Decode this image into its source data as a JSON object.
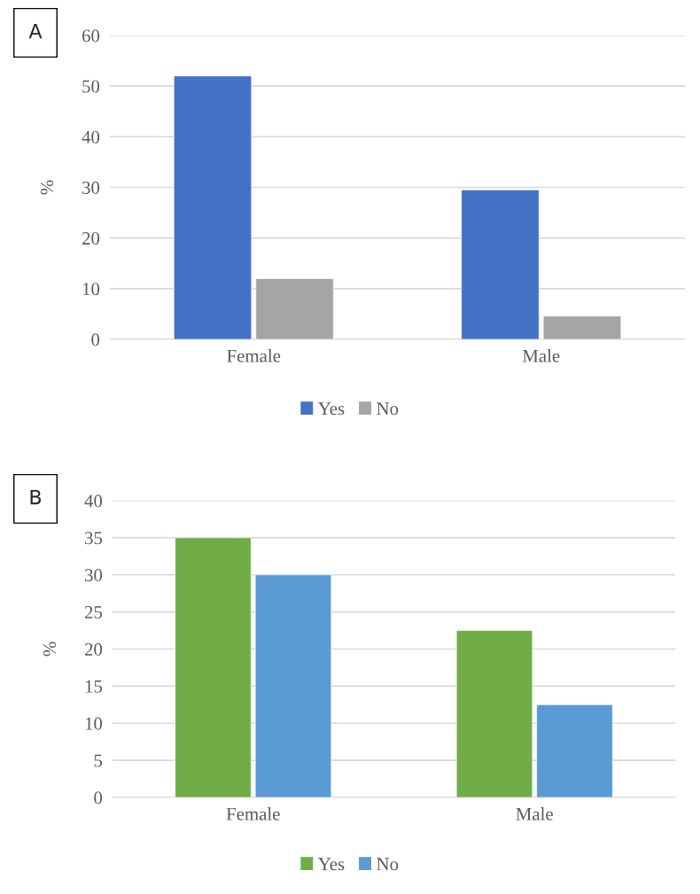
{
  "chart_data": [
    {
      "type": "bar",
      "annotations": [
        "A"
      ],
      "ylabel": "%",
      "categories": [
        "Female",
        "Male"
      ],
      "ylim": [
        0,
        60
      ],
      "yticks": [
        0,
        10,
        20,
        30,
        40,
        50,
        60
      ],
      "grid": "y",
      "legend": "bottom",
      "series": [
        {
          "name": "Yes",
          "color": "#4472c4",
          "values": [
            52.0,
            29.5
          ]
        },
        {
          "name": "No",
          "color": "#a5a5a5",
          "values": [
            12.0,
            4.6
          ]
        }
      ]
    },
    {
      "type": "bar",
      "annotations": [
        "B"
      ],
      "ylabel": "%",
      "categories": [
        "Female",
        "Male"
      ],
      "ylim": [
        0,
        40
      ],
      "yticks": [
        0,
        5,
        10,
        15,
        20,
        25,
        30,
        35,
        40
      ],
      "grid": "y",
      "legend": "bottom",
      "series": [
        {
          "name": "Yes",
          "color": "#70ad47",
          "values": [
            35,
            22.5
          ]
        },
        {
          "name": "No",
          "color": "#5b9bd5",
          "values": [
            30,
            12.5
          ]
        }
      ]
    }
  ]
}
